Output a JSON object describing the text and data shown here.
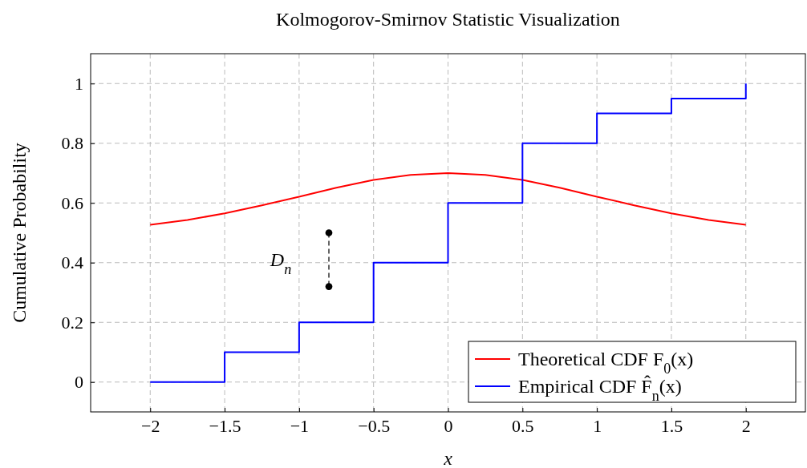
{
  "chart_data": {
    "type": "line",
    "title": "Kolmogorov-Smirnov Statistic Visualization",
    "xlabel": "x",
    "ylabel": "Cumulative Probability",
    "xlim": [
      -2.4,
      2.4
    ],
    "ylim": [
      -0.1,
      1.1
    ],
    "xticks": [
      {
        "value": -2,
        "label": "−2"
      },
      {
        "value": -1.5,
        "label": "−1.5"
      },
      {
        "value": -1,
        "label": "−1"
      },
      {
        "value": -0.5,
        "label": "−0.5"
      },
      0,
      0.5,
      1,
      1.5,
      2
    ],
    "yticks": [
      0,
      0.2,
      0.4,
      0.6,
      0.8,
      1
    ],
    "grid": true,
    "legend": "bottom right",
    "series": [
      {
        "name": "Theoretical CDF F$_{0}$(x)",
        "color": "#ff0000",
        "x": [
          -2,
          -1.75,
          -1.5,
          -1.25,
          -1,
          -0.75,
          -0.5,
          -0.25,
          0,
          0.25,
          0.5,
          0.75,
          1,
          1.25,
          1.5,
          1.75,
          2
        ],
        "values": [
          0.527,
          0.543,
          0.565,
          0.592,
          0.621,
          0.651,
          0.677,
          0.694,
          0.7,
          0.694,
          0.677,
          0.651,
          0.621,
          0.592,
          0.565,
          0.543,
          0.527
        ]
      },
      {
        "name": "Empirical CDF F̂$_{n}$(x)",
        "type": "step",
        "color": "#0000ff",
        "x": [
          -2,
          -1.5,
          -1,
          -0.5,
          0,
          0.5,
          1,
          1.5,
          2
        ],
        "values": [
          0,
          0.1,
          0.2,
          0.4,
          0.6,
          0.8,
          0.9,
          0.95,
          1
        ]
      },
      {
        "type": "line",
        "color": "#000000",
        "x": [
          -0.8,
          -0.8
        ],
        "values": [
          0.5,
          0.32
        ],
        "marker": "circle",
        "line_style": "dashed"
      }
    ],
    "annotations": [
      "D$_{n}$"
    ]
  }
}
